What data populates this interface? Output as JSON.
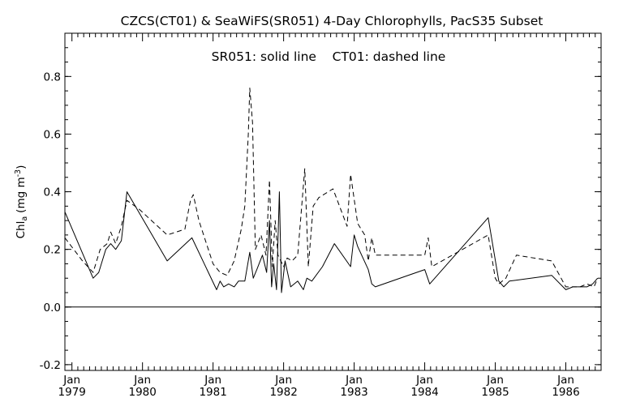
{
  "chart_data": {
    "type": "line",
    "title": "CZCS(CT01) & SeaWiFS(SR051) 4-Day Chlorophylls, PacS35 Subset",
    "annotation": "SR051: solid line    CT01: dashed line",
    "ylabel": "Chl",
    "ylabel_sub": "a",
    "ylabel_unit": "(mg m",
    "ylabel_sup": "-3",
    "ylabel_close": ")",
    "xlabel": "",
    "xlim": [
      1978.9,
      1986.5
    ],
    "ylim": [
      -0.22,
      0.95
    ],
    "zero_line": 0.0,
    "grid": false,
    "y_ticks": [
      {
        "value": -0.2,
        "label": "-0.2"
      },
      {
        "value": 0.0,
        "label": "0.0"
      },
      {
        "value": 0.2,
        "label": "0.2"
      },
      {
        "value": 0.4,
        "label": "0.4"
      },
      {
        "value": 0.6,
        "label": "0.6"
      },
      {
        "value": 0.8,
        "label": "0.8"
      }
    ],
    "x_ticks": [
      {
        "value": 1979.0,
        "month": "Jan",
        "year": "1979"
      },
      {
        "value": 1980.0,
        "month": "Jan",
        "year": "1980"
      },
      {
        "value": 1981.0,
        "month": "Jan",
        "year": "1981"
      },
      {
        "value": 1982.0,
        "month": "Jan",
        "year": "1982"
      },
      {
        "value": 1983.0,
        "month": "Jan",
        "year": "1983"
      },
      {
        "value": 1984.0,
        "month": "Jan",
        "year": "1984"
      },
      {
        "value": 1985.0,
        "month": "Jan",
        "year": "1985"
      },
      {
        "value": 1986.0,
        "month": "Jan",
        "year": "1986"
      }
    ],
    "series": [
      {
        "name": "SR051",
        "style": "solid",
        "color": "#000000",
        "x": [
          1978.9,
          1979.3,
          1979.38,
          1979.48,
          1979.55,
          1979.62,
          1979.7,
          1979.78,
          1980.35,
          1980.7,
          1981.05,
          1981.1,
          1981.15,
          1981.22,
          1981.3,
          1981.36,
          1981.45,
          1981.52,
          1981.57,
          1981.62,
          1981.7,
          1981.76,
          1981.8,
          1981.83,
          1981.86,
          1981.9,
          1981.94,
          1981.97,
          1982.02,
          1982.1,
          1982.2,
          1982.28,
          1982.33,
          1982.4,
          1982.55,
          1982.72,
          1982.95,
          1983.0,
          1983.05,
          1983.2,
          1983.25,
          1983.3,
          1984.0,
          1984.07,
          1984.9,
          1985.05,
          1985.12,
          1985.2,
          1985.8,
          1986.0,
          1986.1,
          1986.3,
          1986.38,
          1986.45
        ],
        "y": [
          0.33,
          0.1,
          0.12,
          0.2,
          0.22,
          0.2,
          0.23,
          0.4,
          0.16,
          0.24,
          0.06,
          0.09,
          0.07,
          0.08,
          0.07,
          0.09,
          0.09,
          0.19,
          0.1,
          0.13,
          0.18,
          0.12,
          0.3,
          0.07,
          0.15,
          0.06,
          0.4,
          0.05,
          0.16,
          0.07,
          0.09,
          0.06,
          0.1,
          0.09,
          0.14,
          0.22,
          0.14,
          0.25,
          0.21,
          0.13,
          0.08,
          0.07,
          0.13,
          0.08,
          0.31,
          0.09,
          0.07,
          0.09,
          0.11,
          0.06,
          0.07,
          0.07,
          0.08,
          0.1
        ]
      },
      {
        "name": "CT01",
        "style": "dashed",
        "color": "#000000",
        "x": [
          1978.9,
          1979.15,
          1979.3,
          1979.4,
          1979.5,
          1979.55,
          1979.62,
          1979.7,
          1979.78,
          1979.95,
          1980.35,
          1980.6,
          1980.68,
          1980.72,
          1980.8,
          1981.0,
          1981.1,
          1981.2,
          1981.3,
          1981.4,
          1981.45,
          1981.5,
          1981.52,
          1981.56,
          1981.6,
          1981.68,
          1981.75,
          1981.8,
          1981.84,
          1981.88,
          1981.92,
          1982.0,
          1982.05,
          1982.12,
          1982.2,
          1982.3,
          1982.35,
          1982.42,
          1982.5,
          1982.7,
          1982.9,
          1982.95,
          1983.05,
          1983.15,
          1983.2,
          1983.25,
          1983.3,
          1984.0,
          1984.05,
          1984.1,
          1984.9,
          1985.0,
          1985.05,
          1985.15,
          1985.3,
          1985.8,
          1986.0,
          1986.2,
          1986.3,
          1986.4,
          1986.45
        ],
        "y": [
          0.24,
          0.16,
          0.12,
          0.2,
          0.22,
          0.26,
          0.22,
          0.28,
          0.37,
          0.34,
          0.25,
          0.27,
          0.37,
          0.39,
          0.3,
          0.15,
          0.12,
          0.11,
          0.16,
          0.27,
          0.35,
          0.6,
          0.76,
          0.64,
          0.2,
          0.25,
          0.18,
          0.44,
          0.14,
          0.3,
          0.18,
          0.14,
          0.17,
          0.16,
          0.18,
          0.48,
          0.14,
          0.35,
          0.38,
          0.41,
          0.28,
          0.46,
          0.29,
          0.25,
          0.16,
          0.24,
          0.18,
          0.18,
          0.24,
          0.14,
          0.25,
          0.1,
          0.08,
          0.1,
          0.18,
          0.16,
          0.07,
          0.07,
          0.08,
          0.07,
          0.1
        ]
      }
    ]
  }
}
